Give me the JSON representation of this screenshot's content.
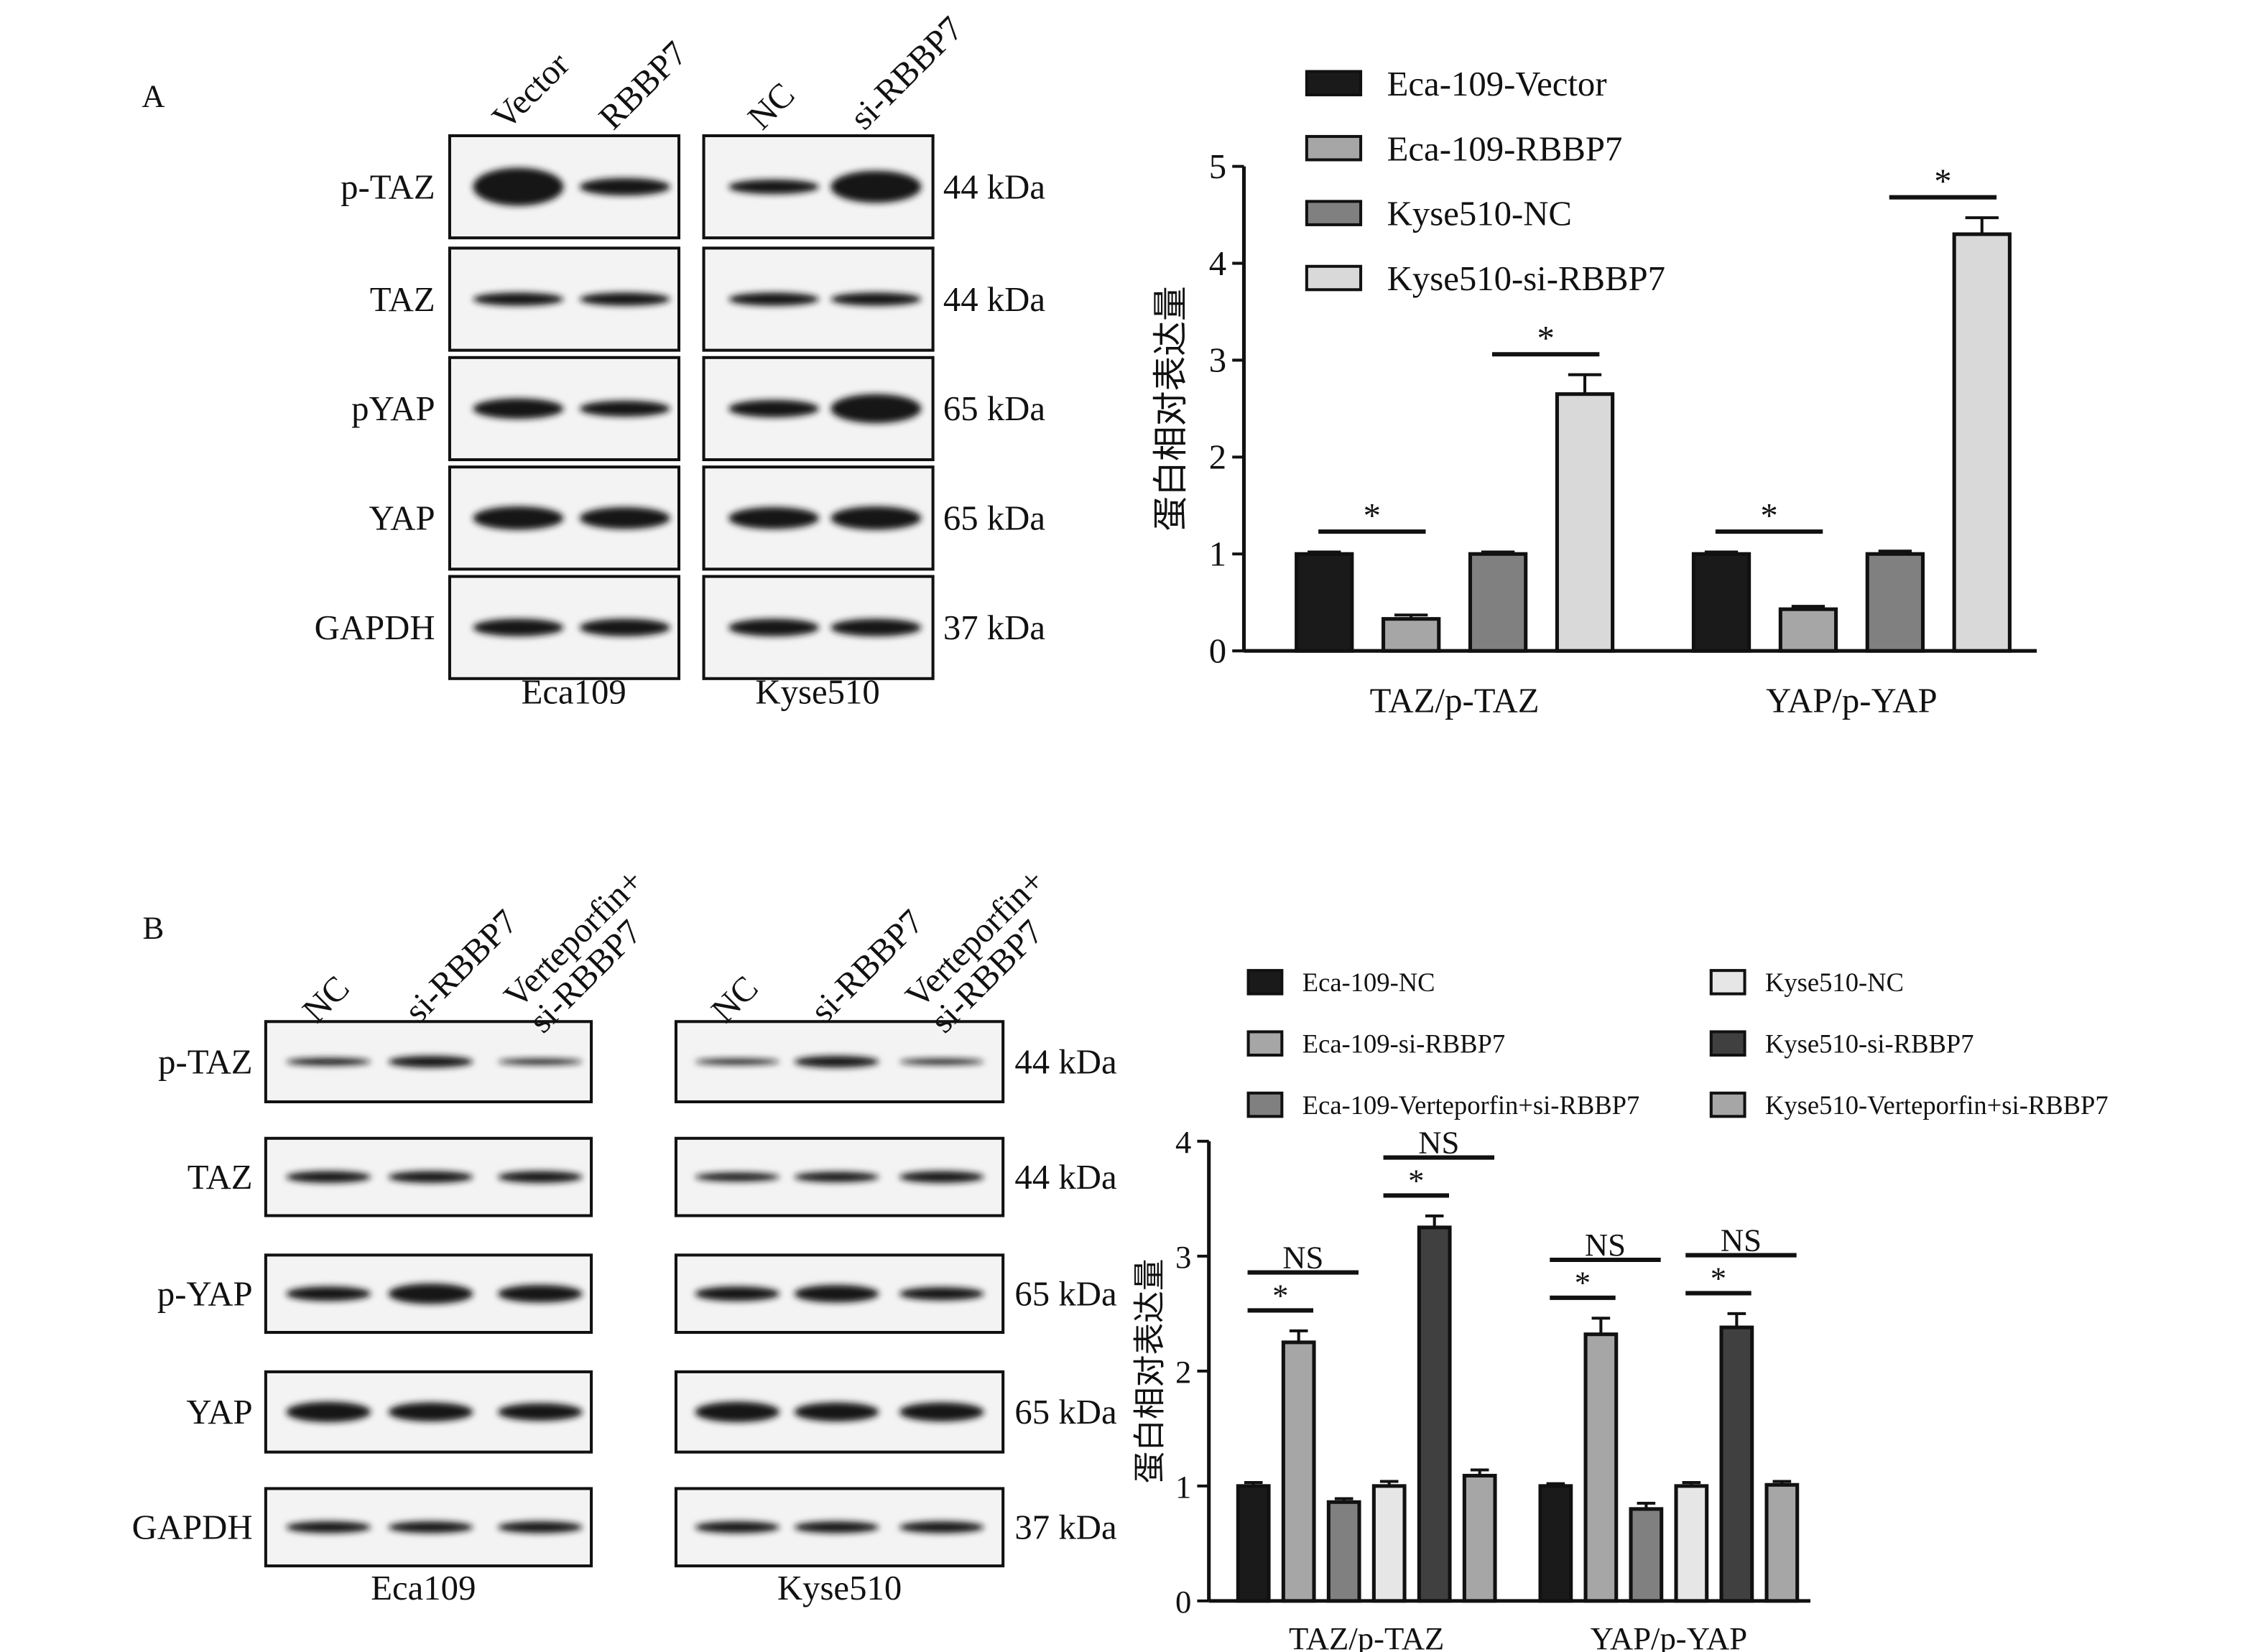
{
  "chart_data": [
    {
      "type": "bar",
      "y_label": "蛋白相对表达量",
      "categories": [
        "TAZ/p-TAZ",
        "YAP/p-YAP"
      ],
      "ylim": [
        0,
        5
      ],
      "yticks": [
        0,
        1,
        2,
        3,
        4,
        5
      ],
      "series": [
        {
          "name": "Eca-109-Vector",
          "color": "#1a1a1a",
          "values": [
            1.0,
            1.0
          ],
          "errors": [
            0.02,
            0.02
          ]
        },
        {
          "name": "Eca-109-RBBP7",
          "color": "#a6a6a6",
          "values": [
            0.33,
            0.43
          ],
          "errors": [
            0.04,
            0.03
          ]
        },
        {
          "name": "Kyse510-NC",
          "color": "#808080",
          "values": [
            1.0,
            1.0
          ],
          "errors": [
            0.02,
            0.03
          ]
        },
        {
          "name": "Kyse510-si-RBBP7",
          "color": "#d9d9d9",
          "values": [
            2.65,
            4.3
          ],
          "errors": [
            0.2,
            0.17
          ]
        }
      ],
      "significance": [
        {
          "label": "*",
          "category": 0,
          "from_series": 0,
          "to_series": 1
        },
        {
          "label": "*",
          "category": 0,
          "from_series": 2,
          "to_series": 3
        },
        {
          "label": "*",
          "category": 1,
          "from_series": 0,
          "to_series": 1
        },
        {
          "label": "*",
          "category": 1,
          "from_series": 2,
          "to_series": 3
        }
      ]
    },
    {
      "type": "bar",
      "y_label": "蛋白相对表达量",
      "categories": [
        "TAZ/p-TAZ",
        "YAP/p-YAP"
      ],
      "ylim": [
        0,
        4
      ],
      "yticks": [
        0,
        1,
        2,
        3,
        4
      ],
      "series": [
        {
          "name": "Eca-109-NC",
          "color": "#1a1a1a",
          "values": [
            1.0,
            1.0
          ],
          "errors": [
            0.03,
            0.02
          ]
        },
        {
          "name": "Eca-109-si-RBBP7",
          "color": "#a6a6a6",
          "values": [
            2.25,
            2.32
          ],
          "errors": [
            0.1,
            0.14
          ]
        },
        {
          "name": "Eca-109-Verteporfin+si-RBBP7",
          "color": "#808080",
          "values": [
            0.86,
            0.8
          ],
          "errors": [
            0.03,
            0.05
          ]
        },
        {
          "name": "Kyse510-NC",
          "color": "#e6e6e6",
          "values": [
            1.0,
            1.0
          ],
          "errors": [
            0.04,
            0.03
          ]
        },
        {
          "name": "Kyse510-si-RBBP7",
          "color": "#404040",
          "values": [
            3.25,
            2.38
          ],
          "errors": [
            0.1,
            0.12
          ]
        },
        {
          "name": "Kyse510-Verteporfin+si-RBBP7",
          "color": "#a6a6a6",
          "values": [
            1.09,
            1.01
          ],
          "errors": [
            0.05,
            0.03
          ]
        }
      ],
      "significance": [
        {
          "label": "*",
          "category": 0,
          "from_series": 0,
          "to_series": 1
        },
        {
          "label": "NS",
          "category": 0,
          "from_series": 0,
          "to_series": 2
        },
        {
          "label": "*",
          "category": 0,
          "from_series": 3,
          "to_series": 4
        },
        {
          "label": "NS",
          "category": 0,
          "from_series": 3,
          "to_series": 5
        },
        {
          "label": "*",
          "category": 1,
          "from_series": 0,
          "to_series": 1
        },
        {
          "label": "NS",
          "category": 1,
          "from_series": 0,
          "to_series": 2
        },
        {
          "label": "*",
          "category": 1,
          "from_series": 3,
          "to_series": 4
        },
        {
          "label": "NS",
          "category": 1,
          "from_series": 3,
          "to_series": 5
        }
      ]
    }
  ],
  "blots": [
    {
      "panel": "A",
      "cell_lines": [
        "Eca109",
        "Kyse510"
      ],
      "lanes": [
        [
          [
            "Vector"
          ],
          [
            "RBBP7"
          ]
        ],
        [
          [
            "NC"
          ],
          [
            "si-RBBP7"
          ]
        ]
      ],
      "rows": [
        "p-TAZ",
        "TAZ",
        "pYAP",
        "YAP",
        "GAPDH"
      ],
      "sizes": [
        "44 kDa",
        "44 kDa",
        "65 kDa",
        "65 kDa",
        "37 kDa"
      ]
    },
    {
      "panel": "B",
      "cell_lines": [
        "Eca109",
        "Kyse510"
      ],
      "lanes": [
        [
          [
            "NC"
          ],
          [
            "si-RBBP7"
          ],
          [
            "Verteporfin+",
            "si-RBBP7"
          ]
        ],
        [
          [
            "NC"
          ],
          [
            "si-RBBP7"
          ],
          [
            "Verteporfin+",
            "si-RBBP7"
          ]
        ]
      ],
      "rows": [
        "p-TAZ",
        "TAZ",
        "p-YAP",
        "YAP",
        "GAPDH"
      ],
      "sizes": [
        "44 kDa",
        "44 kDa",
        "65 kDa",
        "65 kDa",
        "37 kDa"
      ]
    }
  ]
}
